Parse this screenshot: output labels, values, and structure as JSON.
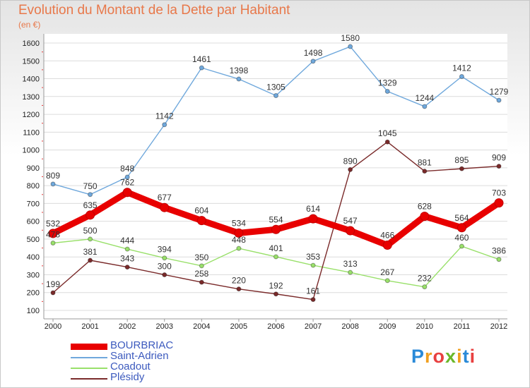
{
  "header": {
    "title": "Evolution du Montant de la Dette par Habitant",
    "subtitle": "(en €)"
  },
  "logo": {
    "text": "Proxiti"
  },
  "chart_data": {
    "type": "line",
    "title": "Evolution du Montant de la Dette par Habitant",
    "subtitle": "(en €)",
    "xlabel": "",
    "ylabel": "",
    "x": [
      "2000",
      "2001",
      "2002",
      "2003",
      "2004",
      "2005",
      "2006",
      "2007",
      "2008",
      "2009",
      "2010",
      "2011",
      "2012"
    ],
    "ylim": [
      100,
      1600
    ],
    "yticks": [
      100,
      200,
      300,
      400,
      500,
      600,
      700,
      800,
      900,
      1000,
      1100,
      1200,
      1300,
      1400,
      1500,
      1600
    ],
    "grid": "horizontal",
    "legend_position": "bottom-left",
    "series": [
      {
        "name": "BOURBRIAC",
        "color": "#e80000",
        "values": [
          532,
          635,
          762,
          677,
          604,
          534,
          554,
          614,
          547,
          466,
          628,
          564,
          703
        ]
      },
      {
        "name": "Saint-Adrien",
        "color": "#6fa8dc",
        "values": [
          809,
          750,
          848,
          1142,
          1461,
          1398,
          1305,
          1498,
          1580,
          1329,
          1244,
          1412,
          1279
        ]
      },
      {
        "name": "Coadout",
        "color": "#99e06a",
        "values": [
          478,
          500,
          444,
          394,
          350,
          448,
          401,
          353,
          313,
          267,
          232,
          460,
          386
        ]
      },
      {
        "name": "Plésidy",
        "color": "#7a2a2a",
        "values": [
          199,
          381,
          343,
          300,
          258,
          220,
          192,
          161,
          890,
          1045,
          881,
          895,
          909
        ]
      }
    ]
  }
}
